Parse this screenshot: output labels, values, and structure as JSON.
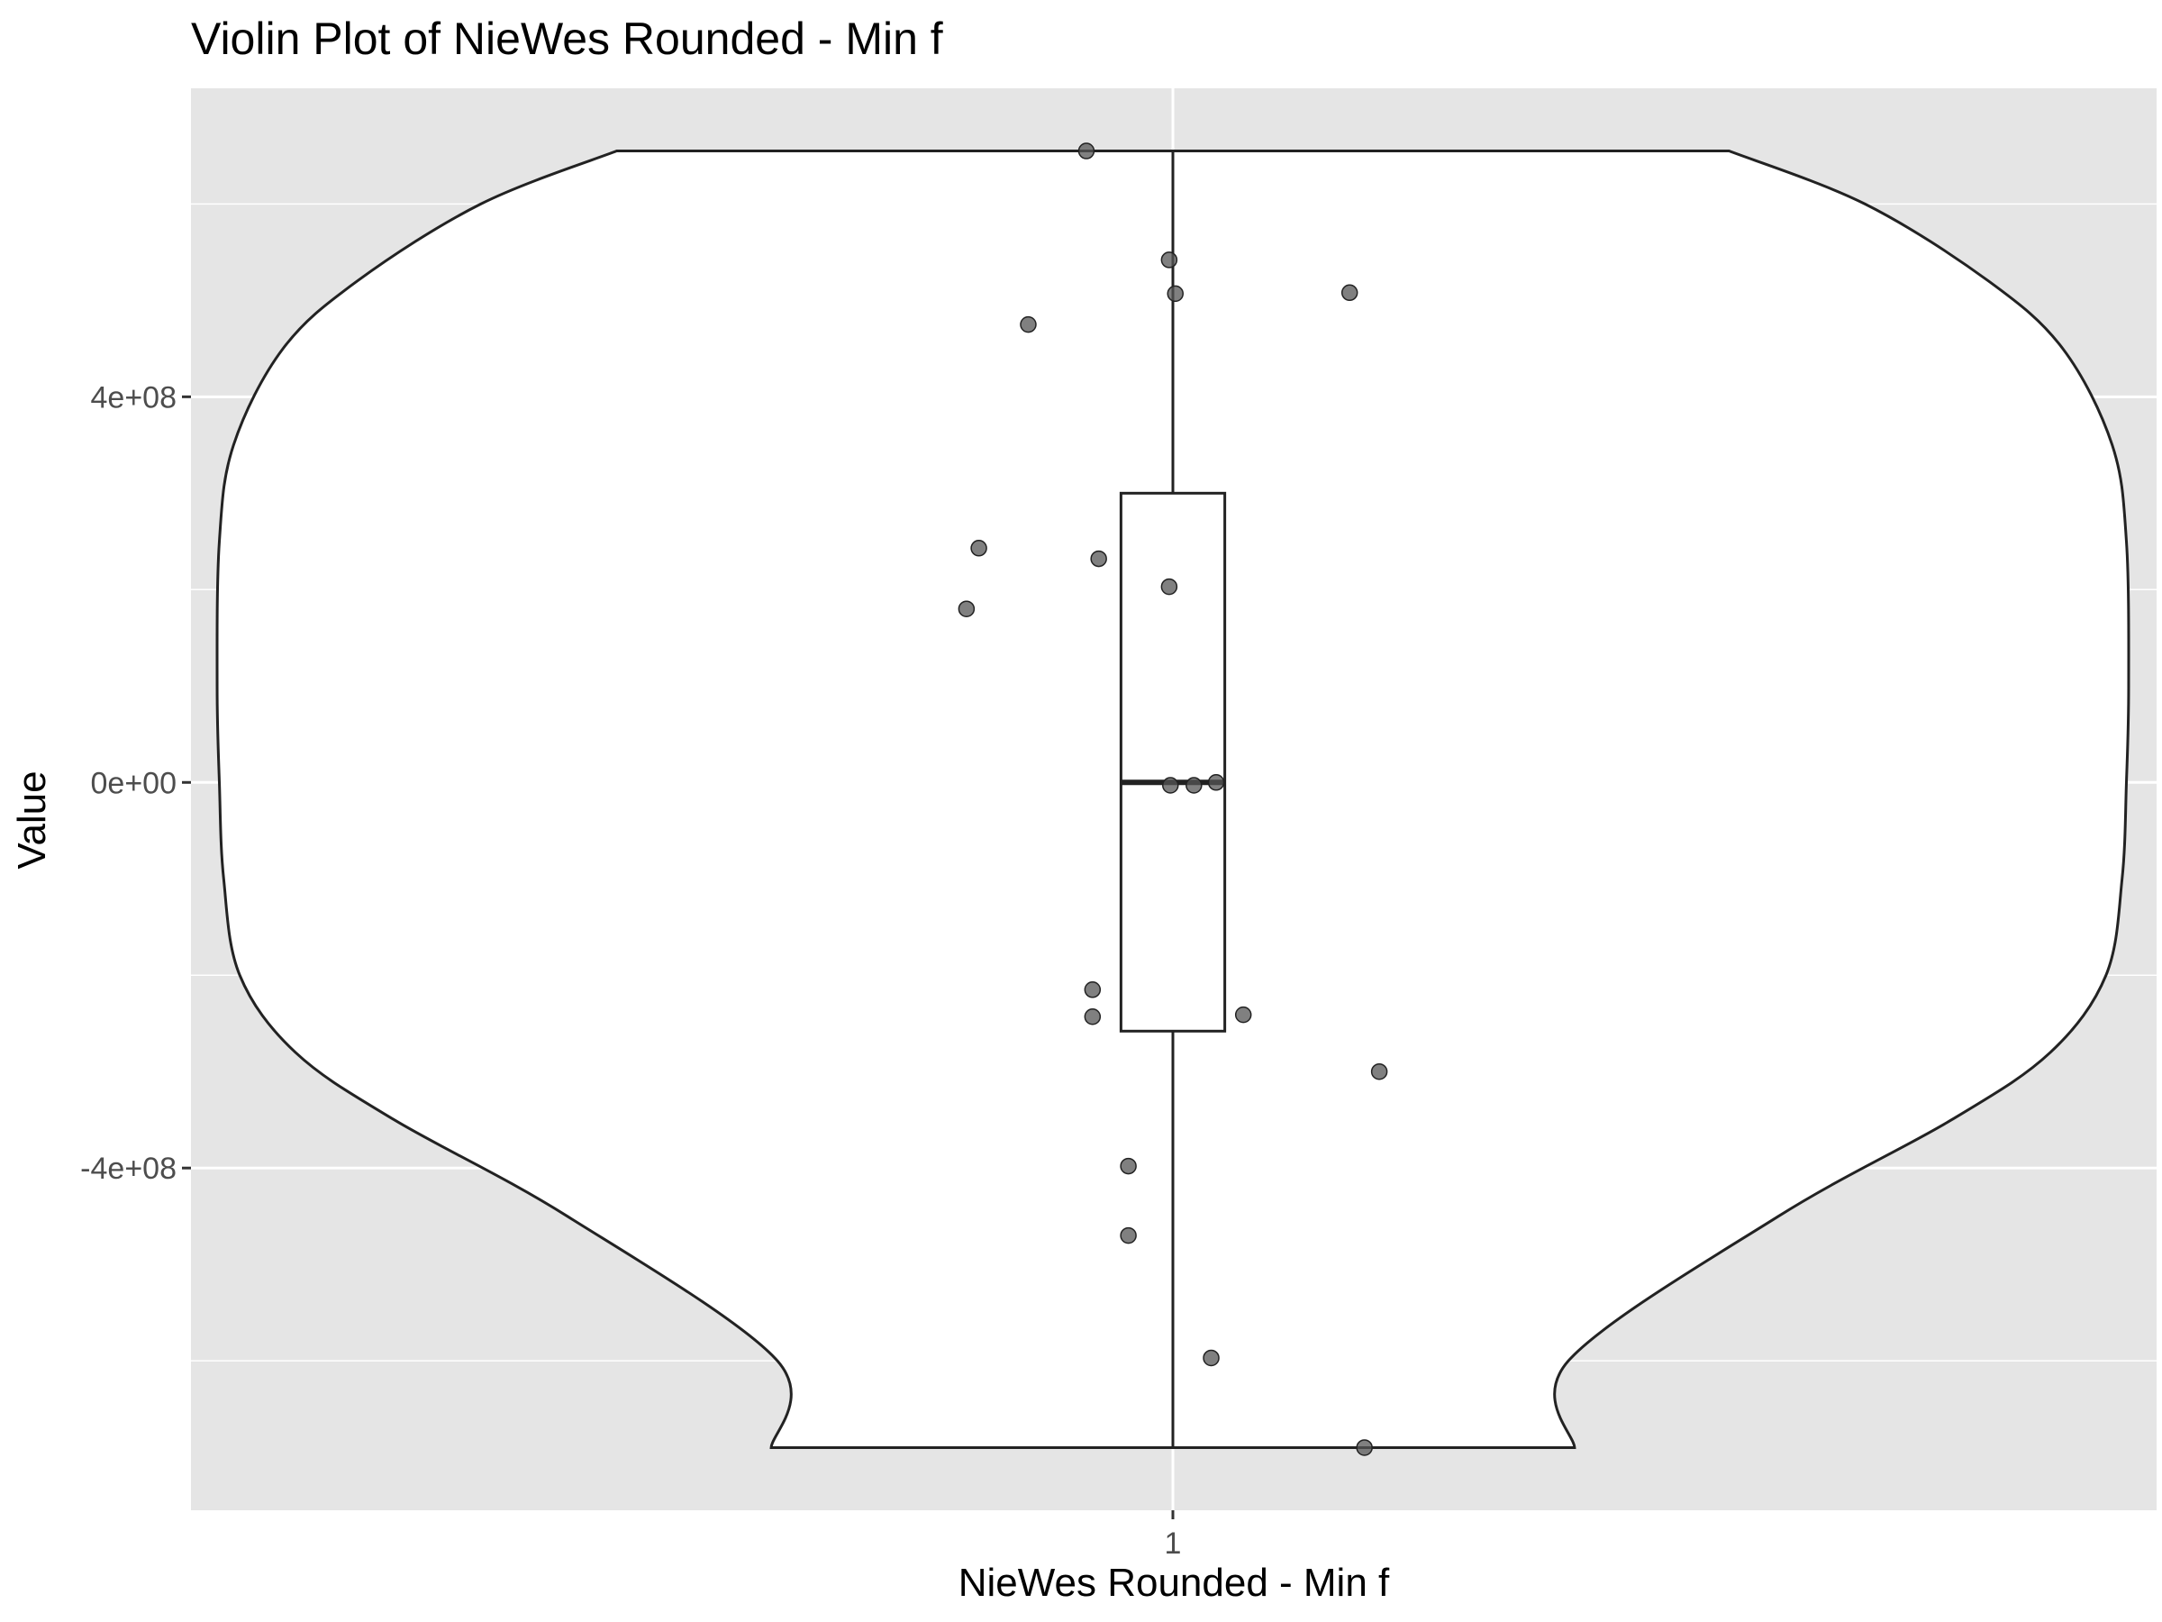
{
  "chart_data": {
    "type": "violin",
    "title": "Violin Plot of NieWes Rounded - Min f",
    "xlabel": "NieWes Rounded - Min f",
    "ylabel": "Value",
    "categories": [
      "1"
    ],
    "ylim": [
      -755000000,
      720000000
    ],
    "y_ticks": [
      -400000000,
      0,
      400000000
    ],
    "y_tick_labels": [
      "-4e+08",
      "0e+00",
      "4e+08"
    ],
    "x_tick_labels": [
      "1"
    ],
    "grid": true,
    "panel_background": "#e5e5e5",
    "violin_fill": "#ffffff",
    "line_color": "#222222",
    "point_color": "#555555",
    "violin_profile": [
      {
        "y": 655000000,
        "halfwidth": 0.45
      },
      {
        "y": 600000000,
        "halfwidth": 0.56
      },
      {
        "y": 520000000,
        "halfwidth": 0.66
      },
      {
        "y": 450000000,
        "halfwidth": 0.72
      },
      {
        "y": 350000000,
        "halfwidth": 0.76
      },
      {
        "y": 250000000,
        "halfwidth": 0.7715
      },
      {
        "y": 100000000,
        "halfwidth": 0.7733
      },
      {
        "y": 0,
        "halfwidth": 0.7715
      },
      {
        "y": -100000000,
        "halfwidth": 0.768
      },
      {
        "y": -200000000,
        "halfwidth": 0.755
      },
      {
        "y": -280000000,
        "halfwidth": 0.71
      },
      {
        "y": -350000000,
        "halfwidth": 0.63
      },
      {
        "y": -450000000,
        "halfwidth": 0.49
      },
      {
        "y": -600000000,
        "halfwidth": 0.32
      },
      {
        "y": -690000000,
        "halfwidth": 0.325
      }
    ],
    "boxplot": {
      "min": -690000000,
      "q1": -258000000,
      "median": 0,
      "q3": 300000000,
      "max": 655000000,
      "halfwidth": 0.042
    },
    "points": [
      {
        "x": -0.07,
        "y": 655000000
      },
      {
        "x": -0.003,
        "y": 542000000
      },
      {
        "x": 0.002,
        "y": 507000000
      },
      {
        "x": 0.143,
        "y": 508000000
      },
      {
        "x": -0.117,
        "y": 475000000
      },
      {
        "x": -0.157,
        "y": 243000000
      },
      {
        "x": -0.06,
        "y": 232000000
      },
      {
        "x": -0.003,
        "y": 203000000
      },
      {
        "x": -0.167,
        "y": 180000000
      },
      {
        "x": -0.002,
        "y": -3000000
      },
      {
        "x": 0.017,
        "y": -3000000
      },
      {
        "x": 0.035,
        "y": 0
      },
      {
        "x": -0.065,
        "y": -215000000
      },
      {
        "x": -0.065,
        "y": -243000000
      },
      {
        "x": 0.057,
        "y": -241000000
      },
      {
        "x": 0.167,
        "y": -300000000
      },
      {
        "x": -0.036,
        "y": -398000000
      },
      {
        "x": -0.036,
        "y": -470000000
      },
      {
        "x": 0.031,
        "y": -597000000
      },
      {
        "x": 0.155,
        "y": -690000000
      }
    ]
  }
}
